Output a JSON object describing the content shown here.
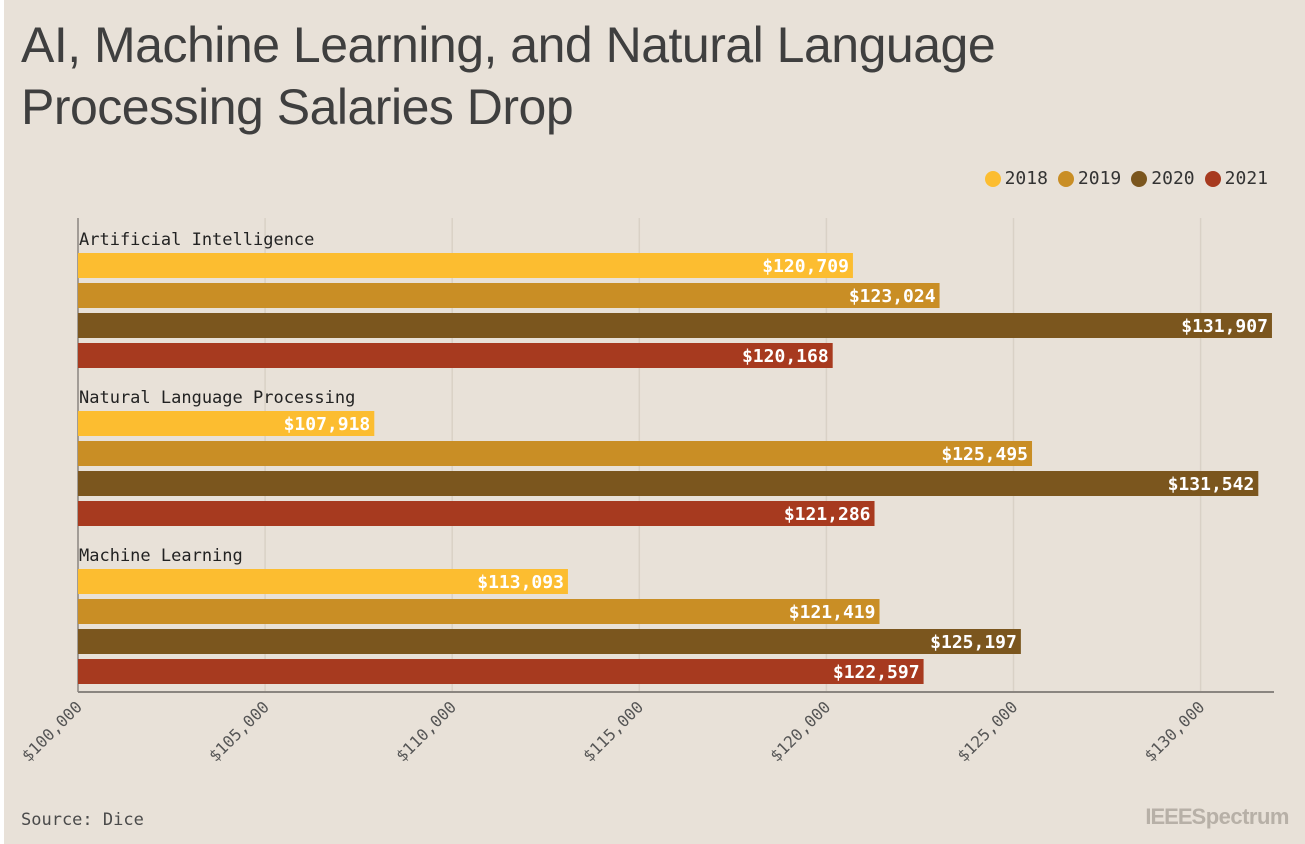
{
  "title": "AI, Machine Learning, and Natural Language Processing Salaries Drop",
  "source": "Source: Dice",
  "brand": {
    "part1": "IEEE",
    "part2": "Spectrum"
  },
  "legend": [
    {
      "label": "2018",
      "color": "#fcbd30"
    },
    {
      "label": "2019",
      "color": "#c98e25"
    },
    {
      "label": "2020",
      "color": "#7b561e"
    },
    {
      "label": "2021",
      "color": "#a73a1f"
    }
  ],
  "chart_data": {
    "type": "bar",
    "orientation": "horizontal",
    "title": "AI, Machine Learning, and Natural Language Processing Salaries Drop",
    "categories": [
      "Artificial Intelligence",
      "Natural Language Processing",
      "Machine Learning"
    ],
    "series": [
      {
        "name": "2018",
        "color": "#fcbd30",
        "values": [
          120709,
          107918,
          113093
        ],
        "labels": [
          "$120,709",
          "$107,918",
          "$113,093"
        ]
      },
      {
        "name": "2019",
        "color": "#c98e25",
        "values": [
          123024,
          125495,
          121419
        ],
        "labels": [
          "$123,024",
          "$125,495",
          "$121,419"
        ]
      },
      {
        "name": "2020",
        "color": "#7b561e",
        "values": [
          131907,
          131542,
          125197
        ],
        "labels": [
          "$131,907",
          "$131,542",
          "$125,197"
        ]
      },
      {
        "name": "2021",
        "color": "#a73a1f",
        "values": [
          120168,
          121286,
          122597
        ],
        "labels": [
          "$120,168",
          "$121,286",
          "$122,597"
        ]
      }
    ],
    "xlim": [
      100000,
      132000
    ],
    "x_ticks": [
      100000,
      105000,
      110000,
      115000,
      120000,
      125000,
      130000
    ],
    "x_tick_labels": [
      "$100,000",
      "$105,000",
      "$110,000",
      "$115,000",
      "$120,000",
      "$125,000",
      "$130,000"
    ],
    "grid": true,
    "legend_position": "top-right"
  }
}
